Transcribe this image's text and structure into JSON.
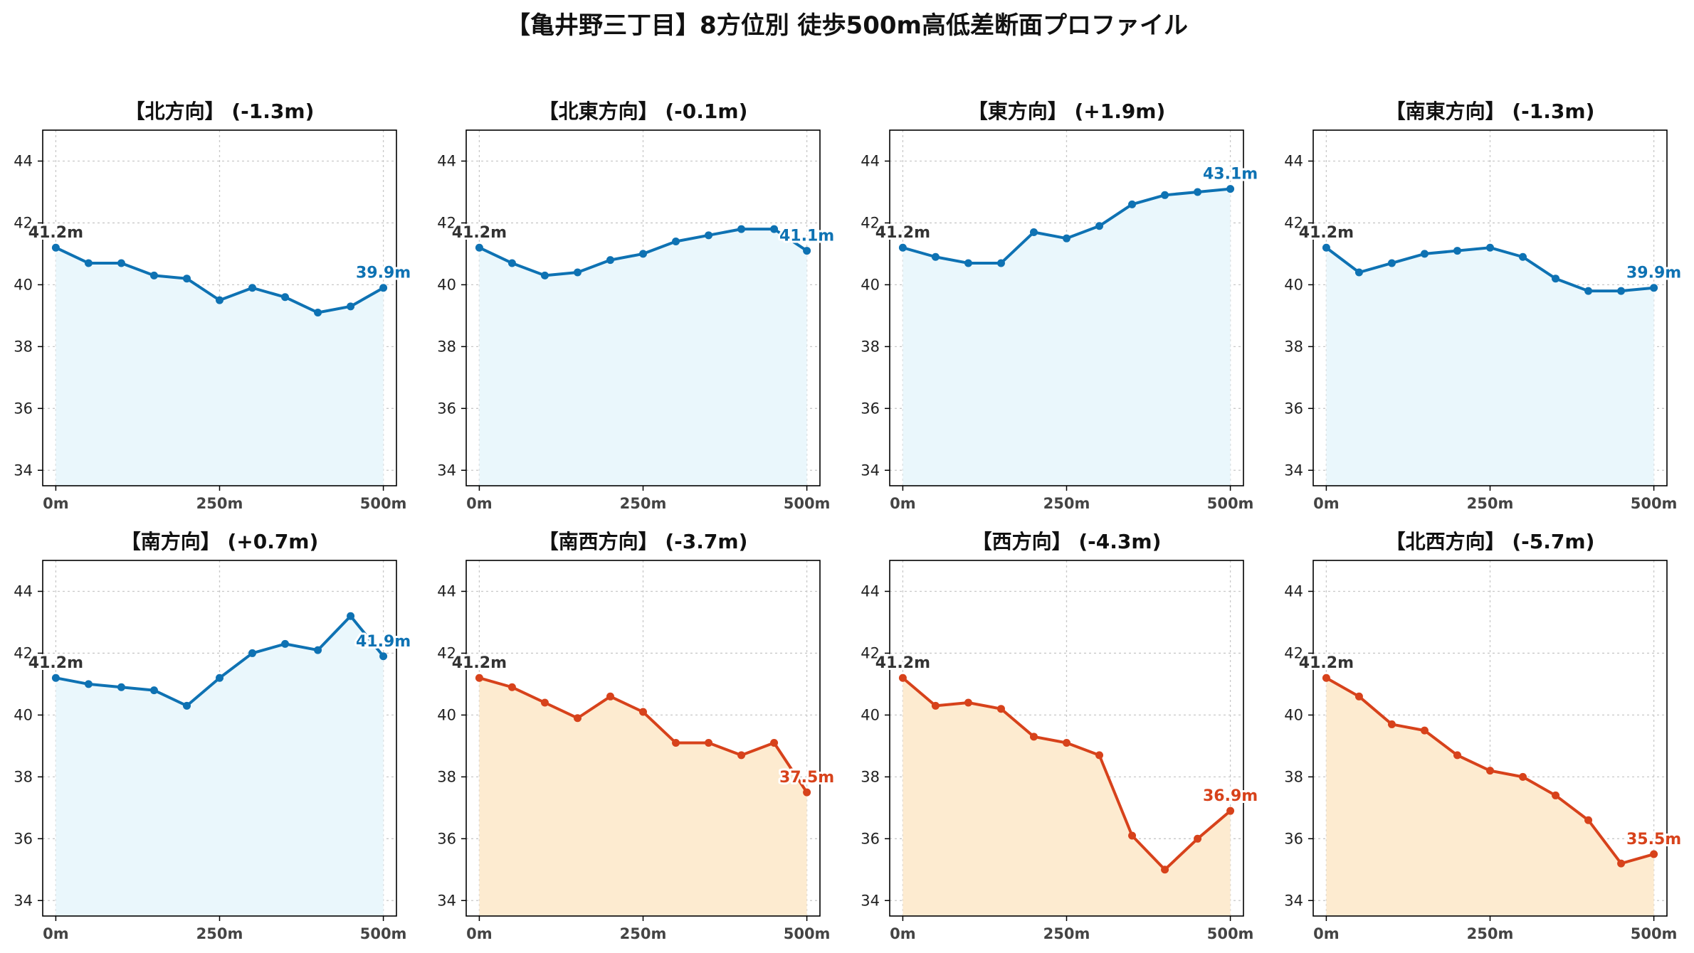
{
  "title": "【亀井野三丁目】8方位別 徒歩500m高低差断面プロファイル",
  "colors": {
    "up_line": "#0e72b3",
    "up_fill": "#eaf7fc",
    "down_line": "#d7421b",
    "down_fill": "#fdebd0",
    "grid": "#c8c8c8",
    "start_label": "#333333"
  },
  "chart_data": [
    {
      "type": "area",
      "title": "【北方向】 (-1.3m)",
      "trend": "up",
      "x": [
        0,
        50,
        100,
        150,
        200,
        250,
        300,
        350,
        400,
        450,
        500
      ],
      "y": [
        41.2,
        40.7,
        40.7,
        40.3,
        40.2,
        39.5,
        39.9,
        39.6,
        39.1,
        39.3,
        39.9
      ],
      "xticks": [
        0,
        250,
        500
      ],
      "xtick_labels": [
        "0m",
        "250m",
        "500m"
      ],
      "yticks": [
        34,
        36,
        38,
        40,
        42,
        44
      ],
      "ylim": [
        33.5,
        45
      ],
      "xlim": [
        -20,
        520
      ],
      "grid": true,
      "start_label": "41.2m",
      "end_label": "39.9m"
    },
    {
      "type": "area",
      "title": "【北東方向】 (-0.1m)",
      "trend": "up",
      "x": [
        0,
        50,
        100,
        150,
        200,
        250,
        300,
        350,
        400,
        450,
        500
      ],
      "y": [
        41.2,
        40.7,
        40.3,
        40.4,
        40.8,
        41.0,
        41.4,
        41.6,
        41.8,
        41.8,
        41.1
      ],
      "xticks": [
        0,
        250,
        500
      ],
      "xtick_labels": [
        "0m",
        "250m",
        "500m"
      ],
      "yticks": [
        34,
        36,
        38,
        40,
        42,
        44
      ],
      "ylim": [
        33.5,
        45
      ],
      "xlim": [
        -20,
        520
      ],
      "grid": true,
      "start_label": "41.2m",
      "end_label": "41.1m"
    },
    {
      "type": "area",
      "title": "【東方向】 (+1.9m)",
      "trend": "up",
      "x": [
        0,
        50,
        100,
        150,
        200,
        250,
        300,
        350,
        400,
        450,
        500
      ],
      "y": [
        41.2,
        40.9,
        40.7,
        40.7,
        41.7,
        41.5,
        41.9,
        42.6,
        42.9,
        43.0,
        43.1
      ],
      "xticks": [
        0,
        250,
        500
      ],
      "xtick_labels": [
        "0m",
        "250m",
        "500m"
      ],
      "yticks": [
        34,
        36,
        38,
        40,
        42,
        44
      ],
      "ylim": [
        33.5,
        45
      ],
      "xlim": [
        -20,
        520
      ],
      "grid": true,
      "start_label": "41.2m",
      "end_label": "43.1m"
    },
    {
      "type": "area",
      "title": "【南東方向】 (-1.3m)",
      "trend": "up",
      "x": [
        0,
        50,
        100,
        150,
        200,
        250,
        300,
        350,
        400,
        450,
        500
      ],
      "y": [
        41.2,
        40.4,
        40.7,
        41.0,
        41.1,
        41.2,
        40.9,
        40.2,
        39.8,
        39.8,
        39.9
      ],
      "xticks": [
        0,
        250,
        500
      ],
      "xtick_labels": [
        "0m",
        "250m",
        "500m"
      ],
      "yticks": [
        34,
        36,
        38,
        40,
        42,
        44
      ],
      "ylim": [
        33.5,
        45
      ],
      "xlim": [
        -20,
        520
      ],
      "grid": true,
      "start_label": "41.2m",
      "end_label": "39.9m"
    },
    {
      "type": "area",
      "title": "【南方向】 (+0.7m)",
      "trend": "up",
      "x": [
        0,
        50,
        100,
        150,
        200,
        250,
        300,
        350,
        400,
        450,
        500
      ],
      "y": [
        41.2,
        41.0,
        40.9,
        40.8,
        40.3,
        41.2,
        42.0,
        42.3,
        42.1,
        43.2,
        41.9
      ],
      "xticks": [
        0,
        250,
        500
      ],
      "xtick_labels": [
        "0m",
        "250m",
        "500m"
      ],
      "yticks": [
        34,
        36,
        38,
        40,
        42,
        44
      ],
      "ylim": [
        33.5,
        45
      ],
      "xlim": [
        -20,
        520
      ],
      "grid": true,
      "start_label": "41.2m",
      "end_label": "41.9m"
    },
    {
      "type": "area",
      "title": "【南西方向】 (-3.7m)",
      "trend": "down",
      "x": [
        0,
        50,
        100,
        150,
        200,
        250,
        300,
        350,
        400,
        450,
        500
      ],
      "y": [
        41.2,
        40.9,
        40.4,
        39.9,
        40.6,
        40.1,
        39.1,
        39.1,
        38.7,
        39.1,
        37.5
      ],
      "xticks": [
        0,
        250,
        500
      ],
      "xtick_labels": [
        "0m",
        "250m",
        "500m"
      ],
      "yticks": [
        34,
        36,
        38,
        40,
        42,
        44
      ],
      "ylim": [
        33.5,
        45
      ],
      "xlim": [
        -20,
        520
      ],
      "grid": true,
      "start_label": "41.2m",
      "end_label": "37.5m"
    },
    {
      "type": "area",
      "title": "【西方向】 (-4.3m)",
      "trend": "down",
      "x": [
        0,
        50,
        100,
        150,
        200,
        250,
        300,
        350,
        400,
        450,
        500
      ],
      "y": [
        41.2,
        40.3,
        40.4,
        40.2,
        39.3,
        39.1,
        38.7,
        36.1,
        35.0,
        36.0,
        36.9
      ],
      "xticks": [
        0,
        250,
        500
      ],
      "xtick_labels": [
        "0m",
        "250m",
        "500m"
      ],
      "yticks": [
        34,
        36,
        38,
        40,
        42,
        44
      ],
      "ylim": [
        33.5,
        45
      ],
      "xlim": [
        -20,
        520
      ],
      "grid": true,
      "start_label": "41.2m",
      "end_label": "36.9m"
    },
    {
      "type": "area",
      "title": "【北西方向】 (-5.7m)",
      "trend": "down",
      "x": [
        0,
        50,
        100,
        150,
        200,
        250,
        300,
        350,
        400,
        450,
        500
      ],
      "y": [
        41.2,
        40.6,
        39.7,
        39.5,
        38.7,
        38.2,
        38.0,
        37.4,
        36.6,
        35.2,
        35.5
      ],
      "xticks": [
        0,
        250,
        500
      ],
      "xtick_labels": [
        "0m",
        "250m",
        "500m"
      ],
      "yticks": [
        34,
        36,
        38,
        40,
        42,
        44
      ],
      "ylim": [
        33.5,
        45
      ],
      "xlim": [
        -20,
        520
      ],
      "grid": true,
      "start_label": "41.2m",
      "end_label": "35.5m"
    }
  ]
}
